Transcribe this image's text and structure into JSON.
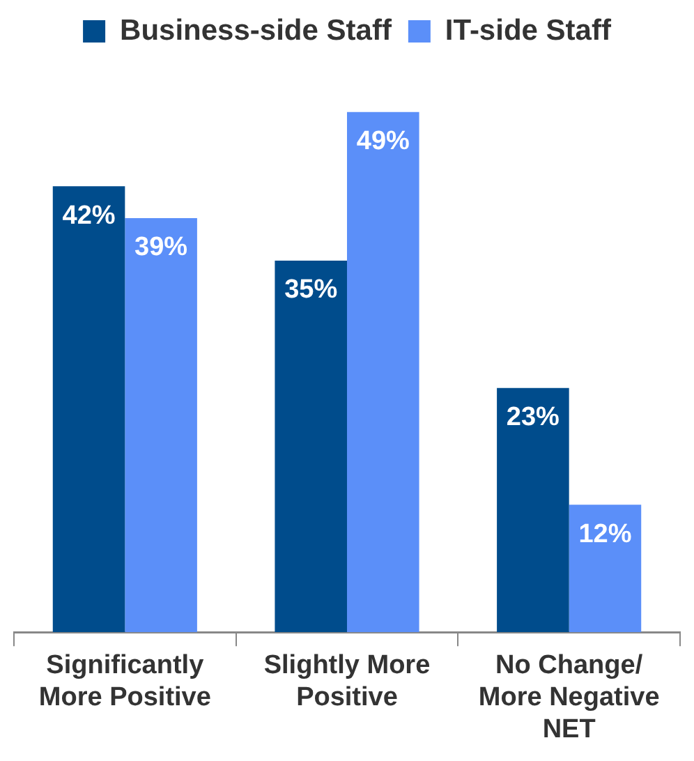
{
  "chart_data": {
    "type": "bar",
    "categories": [
      "Significantly More Positive",
      "Slightly More Positive",
      "No Change/ More Negative NET"
    ],
    "series": [
      {
        "name": "Business-side Staff",
        "color": "#004c8c",
        "values": [
          42,
          35,
          23
        ],
        "value_labels": [
          "42%",
          "35%",
          "23%"
        ]
      },
      {
        "name": "IT-side Staff",
        "color": "#5b8ff9",
        "values": [
          39,
          49,
          12
        ],
        "value_labels": [
          "39%",
          "49%",
          "12%"
        ]
      }
    ],
    "legend": "top",
    "grid": false
  }
}
